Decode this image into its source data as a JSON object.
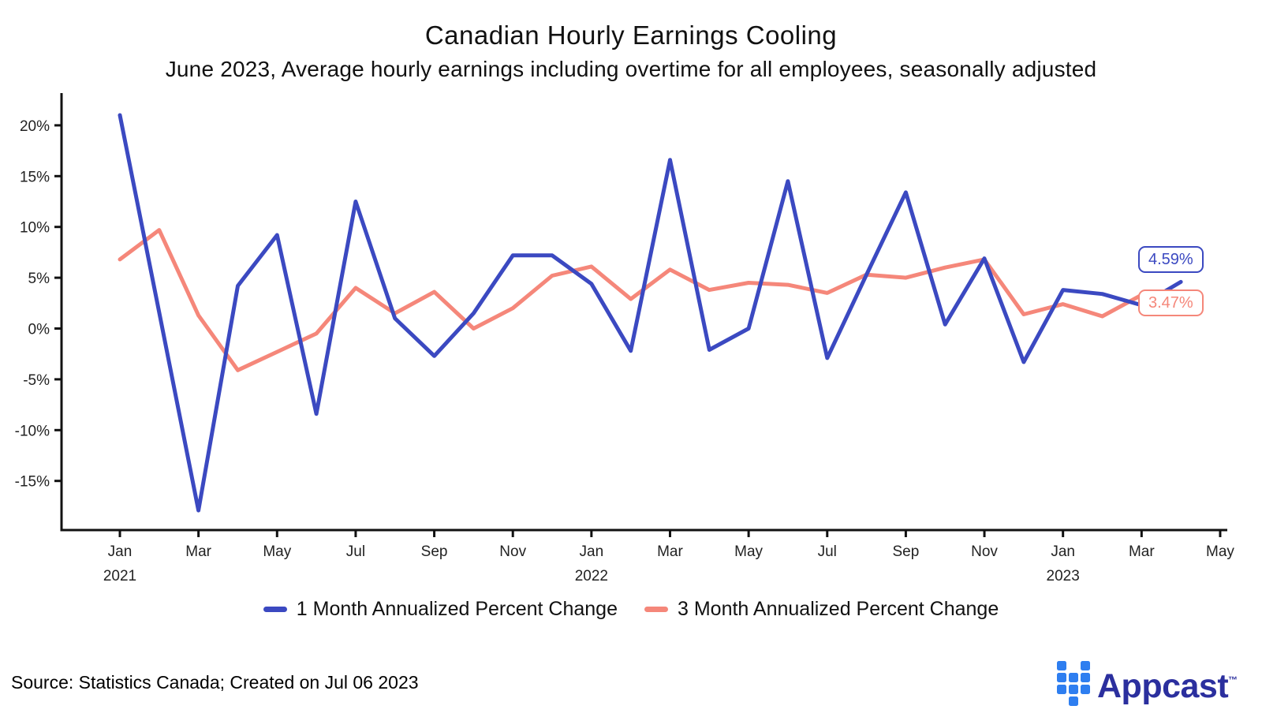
{
  "title": "Canadian Hourly Earnings Cooling",
  "subtitle": "June 2023, Average hourly earnings including overtime for all employees, seasonally adjusted",
  "colors": {
    "series1_blue": "#3B49C1",
    "series2_coral": "#F5877A",
    "axis": "#111111",
    "tick_text": "#222222",
    "logo_icon_azure": "#2E7EF0",
    "logo_word_navy": "#2B2F9E"
  },
  "chart_data": {
    "type": "line",
    "x": [
      "Jan 2021",
      "Feb 2021",
      "Mar 2021",
      "Apr 2021",
      "May 2021",
      "Jun 2021",
      "Jul 2021",
      "Aug 2021",
      "Sep 2021",
      "Oct 2021",
      "Nov 2021",
      "Dec 2021",
      "Jan 2022",
      "Feb 2022",
      "Mar 2022",
      "Apr 2022",
      "May 2022",
      "Jun 2022",
      "Jul 2022",
      "Aug 2022",
      "Sep 2022",
      "Oct 2022",
      "Nov 2022",
      "Dec 2022",
      "Jan 2023",
      "Feb 2023",
      "Mar 2023",
      "Apr 2023"
    ],
    "series": [
      {
        "name": "1 Month Annualized Percent Change",
        "color": "#3B49C1",
        "values": [
          21.0,
          1.6,
          -17.9,
          4.2,
          9.2,
          -8.4,
          12.5,
          1.0,
          -2.7,
          1.5,
          7.2,
          7.2,
          4.4,
          -2.2,
          16.6,
          -2.1,
          0.0,
          14.5,
          -2.9,
          5.3,
          13.4,
          0.4,
          6.9,
          -3.3,
          3.8,
          3.4,
          2.3,
          4.59
        ]
      },
      {
        "name": "3 Month Annualized Percent Change",
        "color": "#F5877A",
        "values": [
          6.8,
          9.7,
          1.3,
          -4.1,
          -2.3,
          -0.5,
          4.0,
          1.5,
          3.6,
          0.0,
          2.0,
          5.2,
          6.1,
          2.9,
          5.8,
          3.8,
          4.5,
          4.3,
          3.5,
          5.3,
          5.0,
          6.0,
          6.8,
          1.4,
          2.4,
          1.2,
          3.3,
          3.47
        ]
      }
    ],
    "end_labels": [
      {
        "text": "4.59%",
        "series": 0
      },
      {
        "text": "3.47%",
        "series": 1
      }
    ],
    "y_axis": {
      "ticks": [
        "20%",
        "15%",
        "10%",
        "5%",
        "0%",
        "-5%",
        "-10%",
        "-15%"
      ],
      "values": [
        20,
        15,
        10,
        5,
        0,
        -5,
        -10,
        -15
      ],
      "range": [
        -19.8,
        23.2
      ]
    },
    "x_axis": {
      "tick_labels": [
        "Jan",
        "Mar",
        "May",
        "Jul",
        "Sep",
        "Nov",
        "Jan",
        "Mar",
        "May",
        "Jul",
        "Sep",
        "Nov",
        "Jan",
        "Mar",
        "May"
      ],
      "year_labels": [
        {
          "text": "2021",
          "month_index": 0
        },
        {
          "text": "2022",
          "month_index": 12
        },
        {
          "text": "2023",
          "month_index": 24
        }
      ]
    },
    "legend_position": "bottom-center",
    "grid": false
  },
  "footer": {
    "source": "Source: Statistics Canada; Created on Jul 06 2023",
    "logo_text": "Appcast",
    "logo_tm": "™"
  }
}
